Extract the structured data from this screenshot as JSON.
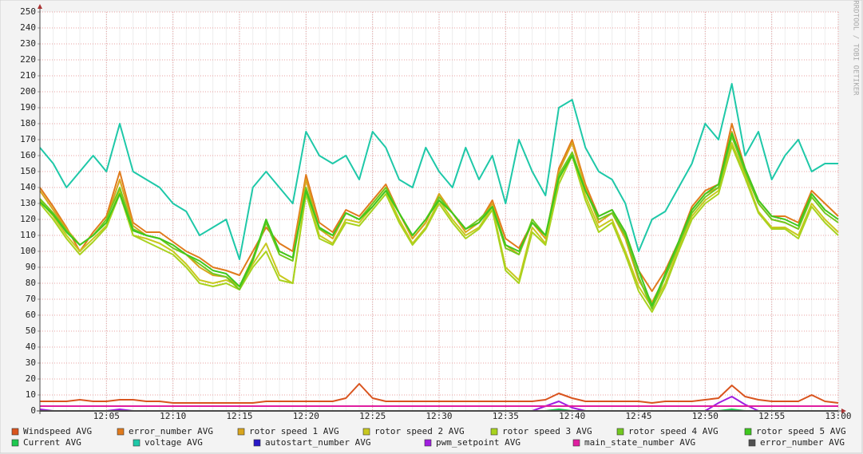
{
  "chart_data": {
    "type": "line",
    "watermark": "RRDTOOL / TOBI OETIKER",
    "x": [
      "12:00",
      "12:01",
      "12:02",
      "12:03",
      "12:04",
      "12:05",
      "12:06",
      "12:07",
      "12:08",
      "12:09",
      "12:10",
      "12:11",
      "12:12",
      "12:13",
      "12:14",
      "12:15",
      "12:16",
      "12:17",
      "12:18",
      "12:19",
      "12:20",
      "12:21",
      "12:22",
      "12:23",
      "12:24",
      "12:25",
      "12:26",
      "12:27",
      "12:28",
      "12:29",
      "12:30",
      "12:31",
      "12:32",
      "12:33",
      "12:34",
      "12:35",
      "12:36",
      "12:37",
      "12:38",
      "12:39",
      "12:40",
      "12:41",
      "12:42",
      "12:43",
      "12:44",
      "12:45",
      "12:46",
      "12:47",
      "12:48",
      "12:49",
      "12:50",
      "12:51",
      "12:52",
      "12:53",
      "12:54",
      "12:55",
      "12:56",
      "12:57",
      "12:58",
      "12:59",
      "13:00"
    ],
    "xlim": [
      "12:00",
      "13:00"
    ],
    "xticks": [
      "12:05",
      "12:10",
      "12:15",
      "12:20",
      "12:25",
      "12:30",
      "12:35",
      "12:40",
      "12:45",
      "12:50",
      "12:55",
      "13:00"
    ],
    "ylim": [
      0,
      250
    ],
    "yticks": [
      0,
      10,
      20,
      30,
      40,
      50,
      60,
      70,
      80,
      90,
      100,
      110,
      120,
      130,
      140,
      150,
      160,
      170,
      180,
      190,
      200,
      210,
      220,
      230,
      240,
      250
    ],
    "grid": true,
    "series": [
      {
        "name": "Windspeed AVG",
        "color": "#d9541e",
        "values": [
          6,
          6,
          6,
          7,
          6,
          6,
          7,
          7,
          6,
          6,
          5,
          5,
          5,
          5,
          5,
          5,
          5,
          6,
          6,
          6,
          6,
          6,
          6,
          8,
          17,
          8,
          6,
          6,
          6,
          6,
          6,
          6,
          6,
          6,
          6,
          6,
          6,
          6,
          7,
          11,
          8,
          6,
          6,
          6,
          6,
          6,
          5,
          6,
          6,
          6,
          7,
          8,
          16,
          9,
          7,
          6,
          6,
          6,
          10,
          6,
          5
        ]
      },
      {
        "name": "error_number AVG",
        "color": "#e07a1c",
        "values": [
          140,
          128,
          115,
          100,
          112,
          122,
          150,
          118,
          112,
          112,
          106,
          100,
          96,
          90,
          88,
          85,
          100,
          115,
          105,
          100,
          148,
          118,
          112,
          126,
          122,
          132,
          142,
          124,
          108,
          118,
          136,
          124,
          114,
          118,
          132,
          108,
          102,
          118,
          108,
          152,
          170,
          142,
          122,
          126,
          112,
          88,
          75,
          88,
          106,
          128,
          138,
          142,
          180,
          152,
          132,
          122,
          122,
          118,
          138,
          130,
          122
        ]
      },
      {
        "name": "rotor speed 1 AVG",
        "color": "#d8a51c",
        "values": [
          138,
          126,
          114,
          104,
          110,
          120,
          145,
          116,
          110,
          108,
          104,
          98,
          90,
          85,
          84,
          78,
          96,
          118,
          100,
          96,
          145,
          114,
          108,
          124,
          120,
          130,
          140,
          124,
          108,
          118,
          136,
          124,
          112,
          118,
          130,
          104,
          98,
          118,
          108,
          150,
          168,
          140,
          118,
          124,
          108,
          82,
          68,
          84,
          104,
          126,
          136,
          140,
          175,
          150,
          130,
          120,
          118,
          114,
          136,
          126,
          120
        ]
      },
      {
        "name": "rotor speed 2 AVG",
        "color": "#c8c81e",
        "values": [
          132,
          122,
          110,
          100,
          108,
          116,
          138,
          110,
          108,
          105,
          100,
          92,
          82,
          80,
          82,
          78,
          92,
          105,
          85,
          80,
          138,
          110,
          105,
          120,
          118,
          128,
          138,
          120,
          105,
          115,
          132,
          120,
          110,
          115,
          128,
          90,
          82,
          115,
          105,
          145,
          162,
          135,
          115,
          120,
          100,
          78,
          65,
          80,
          102,
          122,
          132,
          138,
          168,
          148,
          125,
          115,
          115,
          110,
          130,
          120,
          112
        ]
      },
      {
        "name": "rotor speed 3 AVG",
        "color": "#a8d21e",
        "values": [
          130,
          120,
          108,
          98,
          106,
          115,
          136,
          110,
          106,
          102,
          98,
          90,
          80,
          78,
          80,
          76,
          90,
          100,
          82,
          80,
          136,
          108,
          104,
          118,
          116,
          126,
          136,
          118,
          104,
          114,
          130,
          118,
          108,
          114,
          126,
          88,
          80,
          112,
          104,
          142,
          160,
          132,
          112,
          118,
          98,
          75,
          62,
          78,
          100,
          120,
          130,
          136,
          166,
          146,
          124,
          114,
          114,
          108,
          128,
          118,
          110
        ]
      },
      {
        "name": "rotor speed 4 AVG",
        "color": "#72c81e",
        "values": [
          133,
          124,
          113,
          104,
          110,
          120,
          140,
          114,
          110,
          108,
          102,
          98,
          92,
          86,
          84,
          76,
          94,
          118,
          98,
          94,
          140,
          114,
          110,
          124,
          120,
          130,
          140,
          124,
          110,
          120,
          134,
          124,
          114,
          120,
          128,
          102,
          98,
          120,
          110,
          148,
          162,
          138,
          120,
          124,
          110,
          84,
          64,
          84,
          104,
          124,
          134,
          140,
          172,
          150,
          130,
          120,
          118,
          114,
          134,
          124,
          118
        ]
      },
      {
        "name": "rotor speed 5 AVG",
        "color": "#3ec81e",
        "values": [
          131,
          123,
          112,
          104,
          110,
          118,
          136,
          113,
          110,
          108,
          104,
          98,
          94,
          88,
          86,
          78,
          95,
          120,
          100,
          96,
          138,
          115,
          110,
          124,
          120,
          128,
          138,
          124,
          110,
          120,
          132,
          124,
          114,
          118,
          128,
          104,
          100,
          118,
          110,
          146,
          160,
          138,
          122,
          126,
          112,
          88,
          66,
          86,
          106,
          126,
          136,
          142,
          174,
          152,
          132,
          122,
          120,
          116,
          136,
          126,
          120
        ]
      },
      {
        "name": "Current AVG",
        "color": "#1ec850",
        "values": [
          0,
          0,
          0,
          0,
          0,
          0,
          0,
          0,
          0,
          0,
          0,
          0,
          0,
          0,
          0,
          0,
          0,
          0,
          0,
          0,
          0,
          0,
          0,
          0,
          0,
          0,
          0,
          0,
          0,
          0,
          0,
          0,
          0,
          0,
          0,
          0,
          0,
          0,
          0,
          1,
          0,
          0,
          0,
          0,
          0,
          0,
          0,
          0,
          0,
          0,
          0,
          0,
          1,
          0,
          0,
          0,
          0,
          0,
          0,
          0,
          0
        ]
      },
      {
        "name": "voltage AVG",
        "color": "#1ec8a8",
        "values": [
          165,
          155,
          140,
          150,
          160,
          150,
          180,
          150,
          145,
          140,
          130,
          125,
          110,
          115,
          120,
          95,
          140,
          150,
          140,
          130,
          175,
          160,
          155,
          160,
          145,
          175,
          165,
          145,
          140,
          165,
          150,
          140,
          165,
          145,
          160,
          130,
          170,
          150,
          135,
          190,
          195,
          165,
          150,
          145,
          130,
          100,
          120,
          125,
          140,
          155,
          180,
          170,
          205,
          160,
          175,
          145,
          160,
          170,
          150,
          155,
          155
        ]
      },
      {
        "name": "autostart_number AVG",
        "color": "#2818c8",
        "values": [
          0,
          0,
          0,
          0,
          0,
          0,
          0,
          0,
          0,
          0,
          0,
          0,
          0,
          0,
          0,
          0,
          0,
          0,
          0,
          0,
          0,
          0,
          0,
          0,
          0,
          0,
          0,
          0,
          0,
          0,
          0,
          0,
          0,
          0,
          0,
          0,
          0,
          0,
          0,
          0,
          0,
          0,
          0,
          0,
          0,
          0,
          0,
          0,
          0,
          0,
          0,
          0,
          0,
          0,
          0,
          0,
          0,
          0,
          0,
          0,
          0
        ]
      },
      {
        "name": "pwm_setpoint AVG",
        "color": "#a01ee0",
        "values": [
          1,
          0,
          0,
          0,
          0,
          0,
          1,
          0,
          0,
          0,
          0,
          0,
          0,
          0,
          0,
          0,
          0,
          0,
          0,
          0,
          0,
          0,
          0,
          0,
          0,
          0,
          0,
          0,
          0,
          0,
          0,
          0,
          0,
          0,
          0,
          0,
          0,
          0,
          3,
          6,
          2,
          0,
          0,
          0,
          0,
          0,
          0,
          0,
          0,
          0,
          0,
          5,
          9,
          4,
          0,
          0,
          0,
          0,
          0,
          0,
          0
        ]
      },
      {
        "name": "main_state_number AVG",
        "color": "#e01ea0",
        "values": [
          3,
          3,
          3,
          3,
          3,
          3,
          3,
          3,
          3,
          3,
          3,
          3,
          3,
          3,
          3,
          3,
          3,
          3,
          3,
          3,
          3,
          3,
          3,
          3,
          3,
          3,
          3,
          3,
          3,
          3,
          3,
          3,
          3,
          3,
          3,
          3,
          3,
          3,
          3,
          3,
          3,
          3,
          3,
          3,
          3,
          3,
          3,
          3,
          3,
          3,
          3,
          3,
          3,
          3,
          3,
          3,
          3,
          3,
          3,
          3,
          3
        ]
      },
      {
        "name": "error_number AVG",
        "color": "#505050",
        "values": [
          0,
          0,
          0,
          0,
          0,
          0,
          0,
          0,
          0,
          0,
          0,
          0,
          0,
          0,
          0,
          0,
          0,
          0,
          0,
          0,
          0,
          0,
          0,
          0,
          0,
          0,
          0,
          0,
          0,
          0,
          0,
          0,
          0,
          0,
          0,
          0,
          0,
          0,
          0,
          0,
          0,
          0,
          0,
          0,
          0,
          0,
          0,
          0,
          0,
          0,
          0,
          0,
          0,
          0,
          0,
          0,
          0,
          0,
          0,
          0,
          0
        ]
      }
    ]
  }
}
